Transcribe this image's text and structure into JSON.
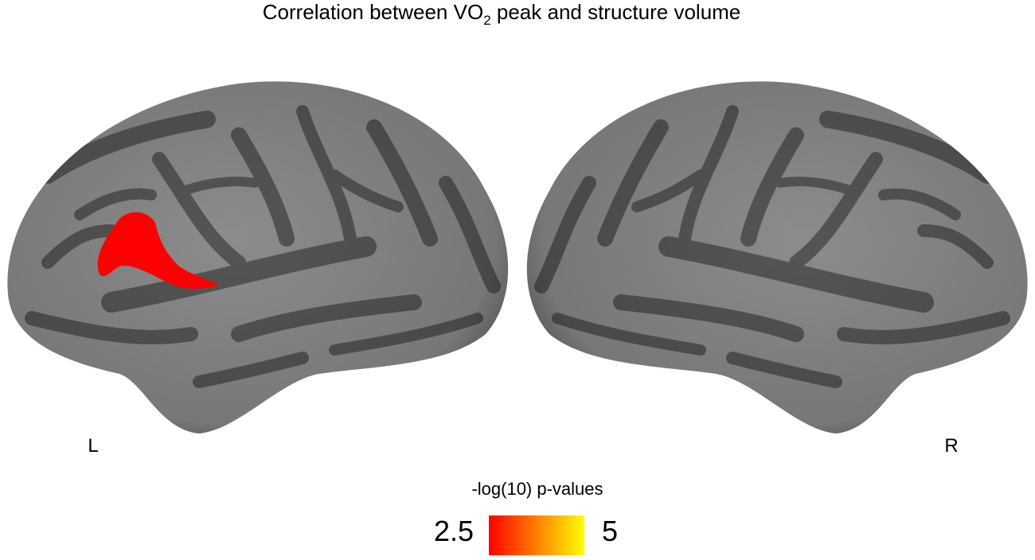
{
  "header": {
    "title": {
      "prefix": "Correlation between VO",
      "subscript": "2",
      "suffix": " peak and structure volume"
    }
  },
  "hemispheres": {
    "left": "L",
    "right": "R"
  },
  "colorbar": {
    "label": "-log(10) p-values",
    "min": 2.5,
    "max": 5,
    "colors": [
      "#ff0000",
      "#ffff00"
    ]
  }
}
